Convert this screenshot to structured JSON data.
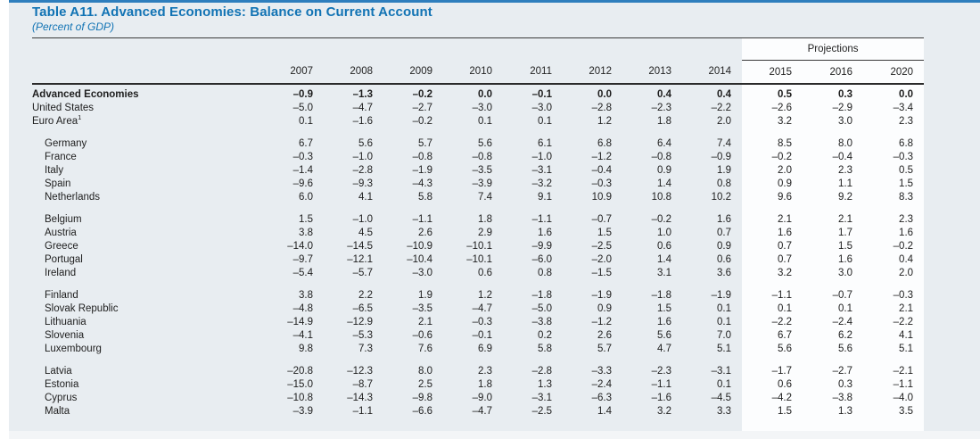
{
  "header": {
    "title": "Table A11. Advanced Economies: Balance on Current Account",
    "subtitle": "(Percent of GDP)",
    "projections_label": "Projections",
    "years": [
      "2007",
      "2008",
      "2009",
      "2010",
      "2011",
      "2012",
      "2013",
      "2014"
    ],
    "projection_years": [
      "2015",
      "2016",
      "2020"
    ]
  },
  "colors": {
    "title_blue": "#1173b4",
    "top_bar_blue": "#2e7ebd",
    "page_background": "#e8edf1",
    "projections_background": "#fcfdfe"
  },
  "table": {
    "columns": [
      "2007",
      "2008",
      "2009",
      "2010",
      "2011",
      "2012",
      "2013",
      "2014",
      "2015",
      "2016",
      "2020"
    ],
    "groups": [
      {
        "rows": [
          {
            "label": "Advanced Economies",
            "sup": "",
            "bold": true,
            "indent": false,
            "values": [
              "–0.9",
              "–1.3",
              "–0.2",
              "0.0",
              "–0.1",
              "0.0",
              "0.4",
              "0.4",
              "0.5",
              "0.3",
              "0.0"
            ]
          },
          {
            "label": "United States",
            "sup": "",
            "bold": false,
            "indent": false,
            "values": [
              "–5.0",
              "–4.7",
              "–2.7",
              "–3.0",
              "–3.0",
              "–2.8",
              "–2.3",
              "–2.2",
              "–2.6",
              "–2.9",
              "–3.4"
            ]
          },
          {
            "label": "Euro Area",
            "sup": "1",
            "bold": false,
            "indent": false,
            "values": [
              "0.1",
              "–1.6",
              "–0.2",
              "0.1",
              "0.1",
              "1.2",
              "1.8",
              "2.0",
              "3.2",
              "3.0",
              "2.3"
            ]
          }
        ]
      },
      {
        "rows": [
          {
            "label": "Germany",
            "sup": "",
            "bold": false,
            "indent": true,
            "values": [
              "6.7",
              "5.6",
              "5.7",
              "5.6",
              "6.1",
              "6.8",
              "6.4",
              "7.4",
              "8.5",
              "8.0",
              "6.8"
            ]
          },
          {
            "label": "France",
            "sup": "",
            "bold": false,
            "indent": true,
            "values": [
              "–0.3",
              "–1.0",
              "–0.8",
              "–0.8",
              "–1.0",
              "–1.2",
              "–0.8",
              "–0.9",
              "–0.2",
              "–0.4",
              "–0.3"
            ]
          },
          {
            "label": "Italy",
            "sup": "",
            "bold": false,
            "indent": true,
            "values": [
              "–1.4",
              "–2.8",
              "–1.9",
              "–3.5",
              "–3.1",
              "–0.4",
              "0.9",
              "1.9",
              "2.0",
              "2.3",
              "0.5"
            ]
          },
          {
            "label": "Spain",
            "sup": "",
            "bold": false,
            "indent": true,
            "values": [
              "–9.6",
              "–9.3",
              "–4.3",
              "–3.9",
              "–3.2",
              "–0.3",
              "1.4",
              "0.8",
              "0.9",
              "1.1",
              "1.5"
            ]
          },
          {
            "label": "Netherlands",
            "sup": "",
            "bold": false,
            "indent": true,
            "values": [
              "6.0",
              "4.1",
              "5.8",
              "7.4",
              "9.1",
              "10.9",
              "10.8",
              "10.2",
              "9.6",
              "9.2",
              "8.3"
            ]
          }
        ]
      },
      {
        "rows": [
          {
            "label": "Belgium",
            "sup": "",
            "bold": false,
            "indent": true,
            "values": [
              "1.5",
              "–1.0",
              "–1.1",
              "1.8",
              "–1.1",
              "–0.7",
              "–0.2",
              "1.6",
              "2.1",
              "2.1",
              "2.3"
            ]
          },
          {
            "label": "Austria",
            "sup": "",
            "bold": false,
            "indent": true,
            "values": [
              "3.8",
              "4.5",
              "2.6",
              "2.9",
              "1.6",
              "1.5",
              "1.0",
              "0.7",
              "1.6",
              "1.7",
              "1.6"
            ]
          },
          {
            "label": "Greece",
            "sup": "",
            "bold": false,
            "indent": true,
            "values": [
              "–14.0",
              "–14.5",
              "–10.9",
              "–10.1",
              "–9.9",
              "–2.5",
              "0.6",
              "0.9",
              "0.7",
              "1.5",
              "–0.2"
            ]
          },
          {
            "label": "Portugal",
            "sup": "",
            "bold": false,
            "indent": true,
            "values": [
              "–9.7",
              "–12.1",
              "–10.4",
              "–10.1",
              "–6.0",
              "–2.0",
              "1.4",
              "0.6",
              "0.7",
              "1.6",
              "0.4"
            ]
          },
          {
            "label": "Ireland",
            "sup": "",
            "bold": false,
            "indent": true,
            "values": [
              "–5.4",
              "–5.7",
              "–3.0",
              "0.6",
              "0.8",
              "–1.5",
              "3.1",
              "3.6",
              "3.2",
              "3.0",
              "2.0"
            ]
          }
        ]
      },
      {
        "rows": [
          {
            "label": "Finland",
            "sup": "",
            "bold": false,
            "indent": true,
            "values": [
              "3.8",
              "2.2",
              "1.9",
              "1.2",
              "–1.8",
              "–1.9",
              "–1.8",
              "–1.9",
              "–1.1",
              "–0.7",
              "–0.3"
            ]
          },
          {
            "label": "Slovak Republic",
            "sup": "",
            "bold": false,
            "indent": true,
            "values": [
              "–4.8",
              "–6.5",
              "–3.5",
              "–4.7",
              "–5.0",
              "0.9",
              "1.5",
              "0.1",
              "0.1",
              "0.1",
              "2.1"
            ]
          },
          {
            "label": "Lithuania",
            "sup": "",
            "bold": false,
            "indent": true,
            "values": [
              "–14.9",
              "–12.9",
              "2.1",
              "–0.3",
              "–3.8",
              "–1.2",
              "1.6",
              "0.1",
              "–2.2",
              "–2.4",
              "–2.2"
            ]
          },
          {
            "label": "Slovenia",
            "sup": "",
            "bold": false,
            "indent": true,
            "values": [
              "–4.1",
              "–5.3",
              "–0.6",
              "–0.1",
              "0.2",
              "2.6",
              "5.6",
              "7.0",
              "6.7",
              "6.2",
              "4.1"
            ]
          },
          {
            "label": "Luxembourg",
            "sup": "",
            "bold": false,
            "indent": true,
            "values": [
              "9.8",
              "7.3",
              "7.6",
              "6.9",
              "5.8",
              "5.7",
              "4.7",
              "5.1",
              "5.6",
              "5.6",
              "5.1"
            ]
          }
        ]
      },
      {
        "rows": [
          {
            "label": "Latvia",
            "sup": "",
            "bold": false,
            "indent": true,
            "values": [
              "–20.8",
              "–12.3",
              "8.0",
              "2.3",
              "–2.8",
              "–3.3",
              "–2.3",
              "–3.1",
              "–1.7",
              "–2.7",
              "–2.1"
            ]
          },
          {
            "label": "Estonia",
            "sup": "",
            "bold": false,
            "indent": true,
            "values": [
              "–15.0",
              "–8.7",
              "2.5",
              "1.8",
              "1.3",
              "–2.4",
              "–1.1",
              "0.1",
              "0.6",
              "0.3",
              "–1.1"
            ]
          },
          {
            "label": "Cyprus",
            "sup": "",
            "bold": false,
            "indent": true,
            "values": [
              "–10.8",
              "–14.3",
              "–9.8",
              "–9.0",
              "–3.1",
              "–6.3",
              "–1.6",
              "–4.5",
              "–4.2",
              "–3.8",
              "–4.0"
            ]
          },
          {
            "label": "Malta",
            "sup": "",
            "bold": false,
            "indent": true,
            "values": [
              "–3.9",
              "–1.1",
              "–6.6",
              "–4.7",
              "–2.5",
              "1.4",
              "3.2",
              "3.3",
              "1.5",
              "1.3",
              "3.5"
            ]
          }
        ]
      }
    ]
  }
}
